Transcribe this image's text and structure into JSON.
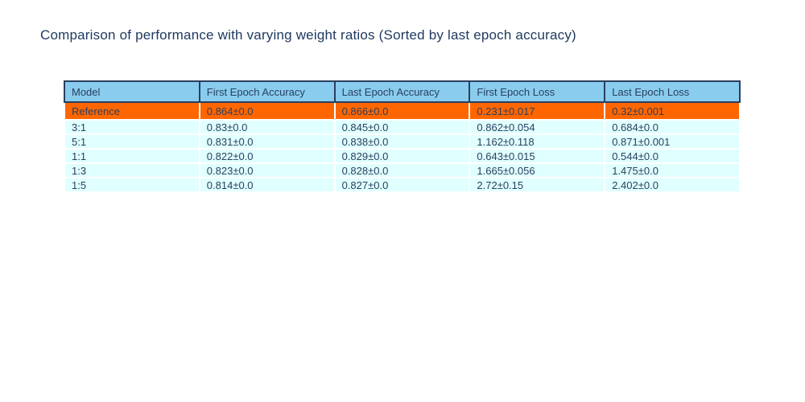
{
  "title": "Comparison of performance with varying weight ratios (Sorted by last epoch accuracy)",
  "colors": {
    "header_bg": "#89CCEE",
    "row_bg": "#E0FFFF",
    "highlight_bg": "#FF6600",
    "border_dark": "#2a3f5f",
    "text": "#2a3f5f",
    "title_text": "#1F3A60"
  },
  "chart_data": {
    "type": "table",
    "title": "Comparison of performance with varying weight ratios (Sorted by last epoch accuracy)",
    "columns": [
      "Model",
      "First Epoch Accuracy",
      "Last Epoch Accuracy",
      "First Epoch Loss",
      "Last Epoch Loss"
    ],
    "rows": [
      {
        "highlight": true,
        "cells": [
          "Reference",
          "0.864±0.0",
          "0.866±0.0",
          "0.231±0.017",
          "0.32±0.001"
        ]
      },
      {
        "highlight": false,
        "cells": [
          "3:1",
          "0.83±0.0",
          "0.845±0.0",
          "0.862±0.054",
          "0.684±0.0"
        ]
      },
      {
        "highlight": false,
        "cells": [
          "5:1",
          "0.831±0.0",
          "0.838±0.0",
          "1.162±0.118",
          "0.871±0.001"
        ]
      },
      {
        "highlight": false,
        "cells": [
          "1:1",
          "0.822±0.0",
          "0.829±0.0",
          "0.643±0.015",
          "0.544±0.0"
        ]
      },
      {
        "highlight": false,
        "cells": [
          "1:3",
          "0.823±0.0",
          "0.828±0.0",
          "1.665±0.056",
          "1.475±0.0"
        ]
      },
      {
        "highlight": false,
        "cells": [
          "1:5",
          "0.814±0.0",
          "0.827±0.0",
          "2.72±0.15",
          "2.402±0.0"
        ]
      }
    ],
    "layout": {
      "highlighted_row": "Reference",
      "grid": "white separators between light-cyan rows, dark navy border around header"
    }
  }
}
